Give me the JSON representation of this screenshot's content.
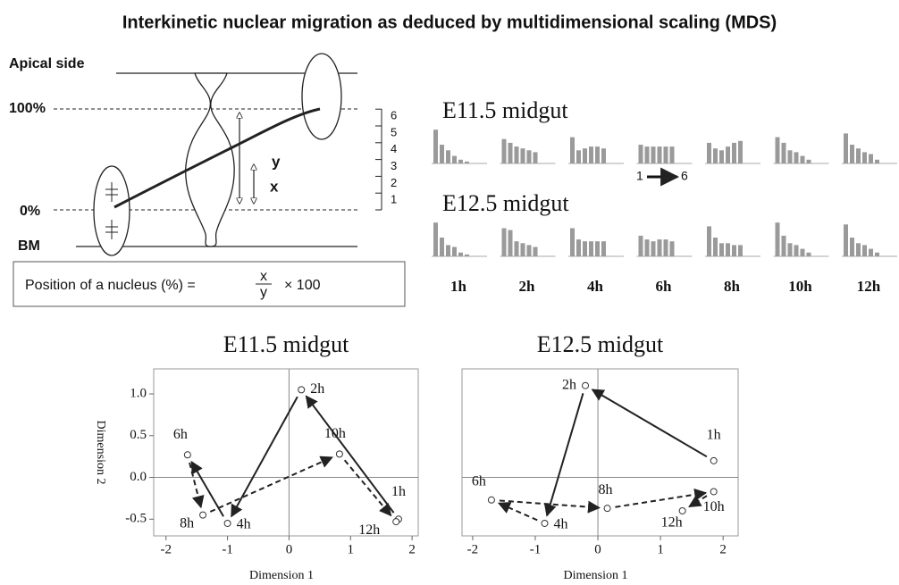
{
  "title": "Interkinetic nuclear migration as deduced by multidimensional scaling (MDS)",
  "diagram": {
    "apical_label": "Apical side",
    "top_label": "100%",
    "bottom_label": "0%",
    "bm_label": "BM",
    "y_label": "y",
    "x_label": "x",
    "scale": [
      1,
      2,
      3,
      4,
      5,
      6
    ],
    "formula": {
      "text": "Position of a nucleus (%) =",
      "numerator": "x",
      "denominator": "y",
      "factor": "× 100"
    }
  },
  "bar_panels": {
    "position_range": [
      1,
      6
    ],
    "times": [
      "1h",
      "2h",
      "4h",
      "6h",
      "8h",
      "10h",
      "12h"
    ],
    "rows": [
      {
        "name": "E11.5 midgut",
        "panels": [
          [
            0.9,
            0.5,
            0.35,
            0.2,
            0.1,
            0.05
          ],
          [
            0.65,
            0.55,
            0.45,
            0.4,
            0.35,
            0.3
          ],
          [
            0.7,
            0.35,
            0.4,
            0.45,
            0.45,
            0.4
          ],
          [
            0.5,
            0.45,
            0.45,
            0.45,
            0.45,
            0.45
          ],
          [
            0.55,
            0.4,
            0.35,
            0.45,
            0.55,
            0.6
          ],
          [
            0.7,
            0.55,
            0.35,
            0.3,
            0.2,
            0.1
          ],
          [
            0.8,
            0.5,
            0.4,
            0.3,
            0.25,
            0.1
          ]
        ]
      },
      {
        "name": "E12.5 midgut",
        "panels": [
          [
            0.9,
            0.5,
            0.3,
            0.25,
            0.1,
            0.05
          ],
          [
            0.75,
            0.7,
            0.4,
            0.35,
            0.3,
            0.25
          ],
          [
            0.75,
            0.45,
            0.4,
            0.4,
            0.4,
            0.4
          ],
          [
            0.55,
            0.45,
            0.4,
            0.45,
            0.45,
            0.4
          ],
          [
            0.8,
            0.5,
            0.35,
            0.35,
            0.3,
            0.3
          ],
          [
            0.9,
            0.55,
            0.35,
            0.3,
            0.2,
            0.1
          ],
          [
            0.85,
            0.5,
            0.35,
            0.3,
            0.2,
            0.1
          ]
        ]
      }
    ]
  },
  "chart_data": [
    {
      "type": "scatter",
      "title": "E11.5 midgut",
      "x_label": "Dimension 1",
      "y_label": "Dimension 2",
      "labels": [
        "1h",
        "2h",
        "4h",
        "6h",
        "8h",
        "10h",
        "12h"
      ],
      "x": [
        1.78,
        0.2,
        -1.0,
        -1.65,
        -1.4,
        0.82,
        1.74
      ],
      "values": [
        -0.5,
        1.05,
        -0.55,
        0.27,
        -0.45,
        0.28,
        -0.53
      ],
      "xlim": [
        -2.2,
        2.1
      ],
      "ylim": [
        -0.7,
        1.3
      ],
      "xticks": [
        -2,
        -1,
        0,
        1,
        2
      ],
      "yticks": [
        {
          "value": 1,
          "label": "1.0"
        },
        0.5,
        {
          "value": 0,
          "label": "0.0"
        },
        -0.5
      ]
    },
    {
      "type": "scatter",
      "title": "E12.5 midgut",
      "x_label": "Dimension 1",
      "labels": [
        "1h",
        "2h",
        "4h",
        "6h",
        "8h",
        "10h",
        "12h"
      ],
      "x": [
        1.85,
        -0.2,
        -0.85,
        -1.7,
        0.15,
        1.85,
        1.35
      ],
      "values": [
        0.2,
        1.1,
        -0.55,
        -0.27,
        -0.37,
        -0.17,
        -0.4
      ],
      "xlim": [
        -2.17,
        2.24
      ],
      "ylim": [
        -0.7,
        1.3
      ],
      "xticks": [
        -2,
        -1,
        0,
        1,
        2
      ]
    }
  ]
}
